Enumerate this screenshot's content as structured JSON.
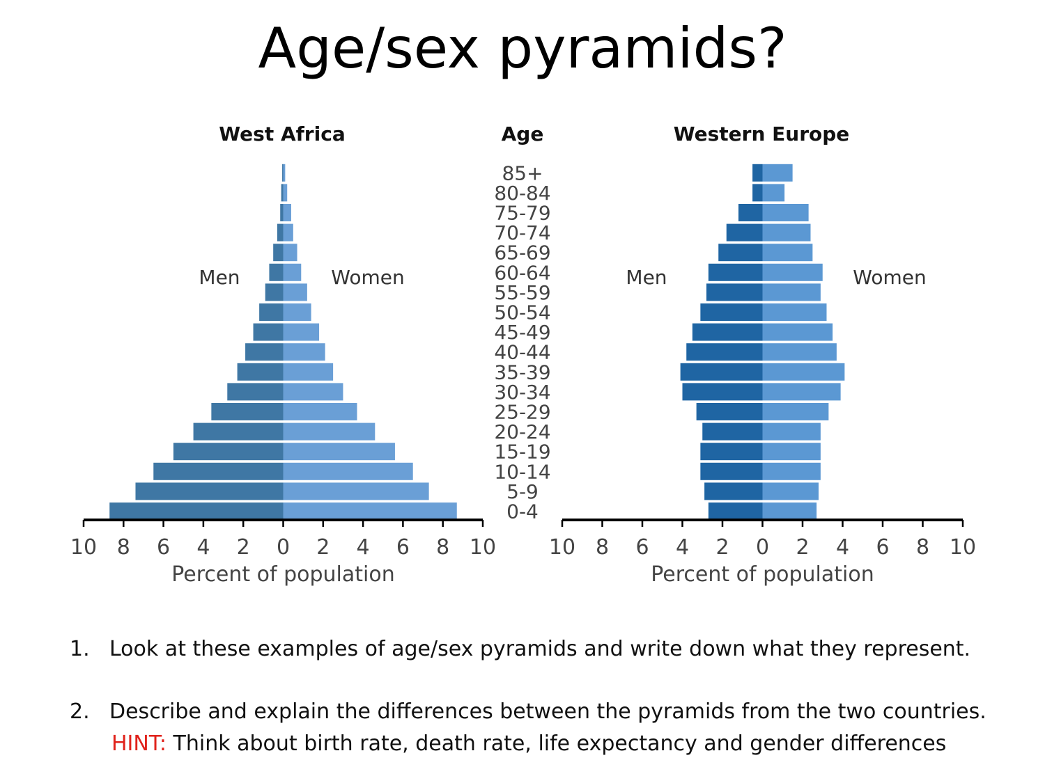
{
  "slide": {
    "title": "Age/sex pyramids?"
  },
  "colors": {
    "west_africa_men": "#3f77a4",
    "west_africa_women": "#6a9fd6",
    "western_europe_men": "#1f65a3",
    "western_europe_women": "#5b98d3",
    "axis": "#000000",
    "hint": "#e0221b"
  },
  "chart_data": [
    {
      "type": "bar",
      "title": "West Africa",
      "age_header": "Age",
      "categories": [
        "85+",
        "80-84",
        "75-79",
        "70-74",
        "65-69",
        "60-64",
        "55-59",
        "50-54",
        "45-49",
        "40-44",
        "35-39",
        "30-34",
        "25-29",
        "20-24",
        "15-19",
        "10-14",
        "5-9",
        "0-4"
      ],
      "series": [
        {
          "name": "Men",
          "values": [
            0.05,
            0.1,
            0.15,
            0.3,
            0.5,
            0.7,
            0.9,
            1.2,
            1.5,
            1.9,
            2.3,
            2.8,
            3.6,
            4.5,
            5.5,
            6.5,
            7.4,
            8.7
          ]
        },
        {
          "name": "Women",
          "values": [
            0.1,
            0.2,
            0.4,
            0.5,
            0.7,
            0.9,
            1.2,
            1.4,
            1.8,
            2.1,
            2.5,
            3.0,
            3.7,
            4.6,
            5.6,
            6.5,
            7.3,
            8.7
          ]
        }
      ],
      "xlabel": "Percent of population",
      "xticks": [
        "10",
        "8",
        "6",
        "4",
        "2",
        "0",
        "2",
        "4",
        "6",
        "8",
        "10"
      ],
      "xlim": [
        -10,
        10
      ],
      "legend": {
        "left": "Men",
        "right": "Women"
      }
    },
    {
      "type": "bar",
      "title": "Western Europe",
      "categories": [
        "85+",
        "80-84",
        "75-79",
        "70-74",
        "65-69",
        "60-64",
        "55-59",
        "50-54",
        "45-49",
        "40-44",
        "35-39",
        "30-34",
        "25-29",
        "20-24",
        "15-19",
        "10-14",
        "5-9",
        "0-4"
      ],
      "series": [
        {
          "name": "Men",
          "values": [
            0.5,
            0.5,
            1.2,
            1.8,
            2.2,
            2.7,
            2.8,
            3.1,
            3.5,
            3.8,
            4.1,
            4.0,
            3.3,
            3.0,
            3.1,
            3.1,
            2.9,
            2.7
          ]
        },
        {
          "name": "Women",
          "values": [
            1.5,
            1.1,
            2.3,
            2.4,
            2.5,
            3.0,
            2.9,
            3.2,
            3.5,
            3.7,
            4.1,
            3.9,
            3.3,
            2.9,
            2.9,
            2.9,
            2.8,
            2.7
          ]
        }
      ],
      "xlabel": "Percent of population",
      "xticks": [
        "10",
        "8",
        "6",
        "4",
        "2",
        "0",
        "2",
        "4",
        "6",
        "8",
        "10"
      ],
      "xlim": [
        -10,
        10
      ],
      "legend": {
        "left": "Men",
        "right": "Women"
      }
    }
  ],
  "instructions": {
    "q1_num": "1.",
    "q1_text": "Look at these examples of age/sex pyramids and write down what they represent.",
    "q2_num": "2.",
    "q2_text": "Describe and explain the differences between the pyramids from the two countries.",
    "hint_label": "HINT:",
    "hint_text": " Think about birth rate, death rate, life expectancy and gender differences"
  }
}
